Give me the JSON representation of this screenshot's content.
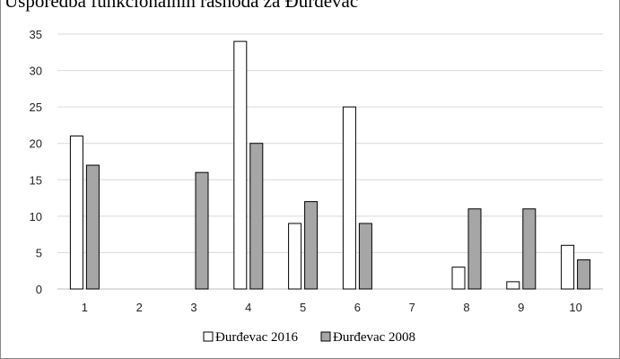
{
  "chart_data": {
    "type": "bar",
    "title": "Usporedba funkcionalnih rashoda za Đurđevac",
    "categories": [
      "1",
      "2",
      "3",
      "4",
      "5",
      "6",
      "7",
      "8",
      "9",
      "10"
    ],
    "series": [
      {
        "name": "Đurđevac 2016",
        "values": [
          21,
          0,
          0,
          34,
          9,
          25,
          0,
          3,
          1,
          6
        ],
        "color": "#ffffff"
      },
      {
        "name": "Đurđevac 2008",
        "values": [
          17,
          0,
          16,
          20,
          12,
          9,
          0,
          11,
          11,
          4
        ],
        "color": "#a6a6a6"
      }
    ],
    "ylim": [
      0,
      35
    ],
    "yticks": [
      0,
      5,
      10,
      15,
      20,
      25,
      30,
      35
    ],
    "grid": true,
    "legend_position": "bottom"
  }
}
